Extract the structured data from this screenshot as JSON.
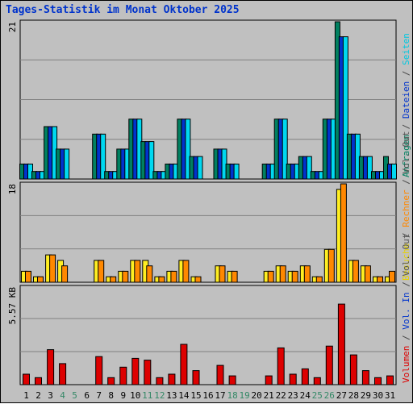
{
  "title": "Tages-Statistik im Monat Oktober 2025",
  "colors": {
    "background": "#c0c0c0",
    "grid": "#808080",
    "anfragen": "#008060",
    "dateien": "#0033cc",
    "seiten": "#00d8f0",
    "besuche": "#ffee22",
    "rechner": "#ff8800",
    "volumen": "#dd0000",
    "weekday_label": "#000000",
    "weekend_label": "#338866"
  },
  "panels": {
    "top": {
      "scale_label": "21",
      "legend": [
        {
          "text": "Anfragen",
          "color": "#008060"
        },
        {
          "text": " / ",
          "color": "#444444"
        },
        {
          "text": "Dateien",
          "color": "#0033cc"
        },
        {
          "text": " / ",
          "color": "#444444"
        },
        {
          "text": "Seiten",
          "color": "#00c8e0"
        }
      ]
    },
    "middle": {
      "scale_label": "18",
      "legend": [
        {
          "text": "Besuche",
          "color": "#e6d200"
        },
        {
          "text": " / ",
          "color": "#444444"
        },
        {
          "text": "Rechner",
          "color": "#ff8800"
        },
        {
          "text": " / ",
          "color": "#444444"
        },
        {
          "text": "Vol. Out",
          "color": "#555555"
        }
      ]
    },
    "bottom": {
      "scale_label": "5.57 KB",
      "legend": [
        {
          "text": "Volumen",
          "color": "#dd0000"
        },
        {
          "text": " / ",
          "color": "#444444"
        },
        {
          "text": "Vol. In",
          "color": "#0033cc"
        },
        {
          "text": " / ",
          "color": "#444444"
        },
        {
          "text": "Vol. Out",
          "color": "#555555"
        }
      ]
    }
  },
  "chart_data": {
    "type": "bar",
    "categories": [
      "1",
      "2",
      "3",
      "4",
      "5",
      "6",
      "7",
      "8",
      "9",
      "10",
      "11",
      "12",
      "13",
      "14",
      "15",
      "16",
      "17",
      "18",
      "19",
      "20",
      "21",
      "22",
      "23",
      "24",
      "25",
      "26",
      "27",
      "28",
      "29",
      "30",
      "31"
    ],
    "weekend_days": [
      "4",
      "5",
      "11",
      "12",
      "18",
      "19",
      "25",
      "26"
    ],
    "panels": [
      {
        "name": "top",
        "ymax": 21,
        "series": [
          {
            "name": "Anfragen",
            "color": "#008060",
            "values": [
              2,
              1,
              7,
              4,
              0,
              0,
              6,
              1,
              4,
              8,
              5,
              1,
              2,
              8,
              3,
              0,
              4,
              2,
              0,
              0,
              2,
              8,
              2,
              3,
              1,
              8,
              21,
              6,
              3,
              1,
              3
            ]
          },
          {
            "name": "Dateien",
            "color": "#0033cc",
            "values": [
              2,
              1,
              7,
              4,
              0,
              0,
              6,
              1,
              4,
              8,
              5,
              1,
              2,
              8,
              3,
              0,
              4,
              2,
              0,
              0,
              2,
              8,
              2,
              3,
              1,
              8,
              19,
              6,
              3,
              1,
              2
            ]
          },
          {
            "name": "Seiten",
            "color": "#00d8f0",
            "values": [
              2,
              1,
              7,
              4,
              0,
              0,
              6,
              1,
              4,
              8,
              5,
              1,
              2,
              8,
              3,
              0,
              4,
              2,
              0,
              0,
              2,
              8,
              2,
              3,
              1,
              8,
              19,
              6,
              3,
              1,
              2
            ]
          }
        ]
      },
      {
        "name": "middle",
        "ymax": 18,
        "series": [
          {
            "name": "Besuche",
            "color": "#ffee22",
            "values": [
              2,
              1,
              5,
              4,
              0,
              0,
              4,
              1,
              2,
              4,
              4,
              1,
              2,
              4,
              1,
              0,
              3,
              2,
              0,
              0,
              2,
              3,
              2,
              3,
              1,
              6,
              17,
              4,
              3,
              1,
              1
            ]
          },
          {
            "name": "Rechner",
            "color": "#ff8800",
            "values": [
              2,
              1,
              5,
              3,
              0,
              0,
              4,
              1,
              2,
              4,
              3,
              1,
              2,
              4,
              1,
              0,
              3,
              2,
              0,
              0,
              2,
              3,
              2,
              3,
              1,
              6,
              18,
              4,
              3,
              1,
              2
            ]
          }
        ]
      },
      {
        "name": "bottom",
        "ymax": 5.57,
        "ylabel": "5.57 KB",
        "series": [
          {
            "name": "Volumen",
            "color": "#dd0000",
            "values": [
              0.6,
              0.4,
              2.0,
              1.2,
              0,
              0,
              1.6,
              0.4,
              1.0,
              1.5,
              1.4,
              0.4,
              0.6,
              2.3,
              0.8,
              0,
              1.1,
              0.5,
              0,
              0,
              0.5,
              2.1,
              0.6,
              0.9,
              0.4,
              2.2,
              4.6,
              1.7,
              0.8,
              0.4,
              0.5
            ]
          }
        ]
      }
    ]
  }
}
